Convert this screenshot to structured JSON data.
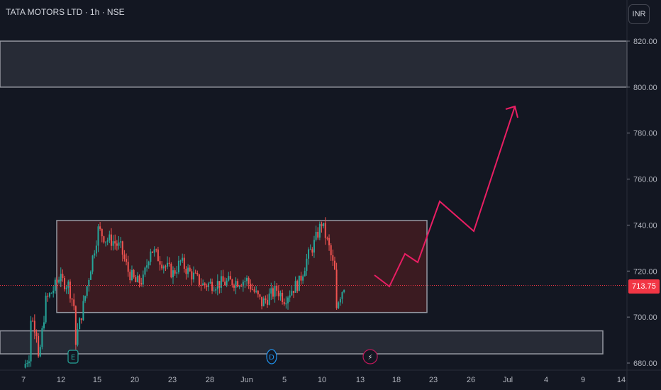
{
  "header": {
    "title": "TATA MOTORS LTD · 1h · NSE",
    "currency": "INR"
  },
  "last_price": "713.75",
  "colors": {
    "background": "#131722",
    "up": "#26a69a",
    "down": "#ef5350",
    "range_box_fill": "#4a1d22",
    "projection": "#e91e63",
    "price_line": "#f23645",
    "zone_stroke": "#9598a1"
  },
  "event_markers": [
    {
      "label": "E",
      "icon": "earnings-icon",
      "x": "13"
    },
    {
      "label": "D",
      "icon": "dividend-icon",
      "x": "Jun 4"
    },
    {
      "label": "⚡",
      "icon": "lightning-icon",
      "x": "Jun 13"
    }
  ],
  "chart_data": {
    "type": "candlestick",
    "title": "TATA MOTORS LTD · 1h · NSE",
    "xlabel": "",
    "ylabel": "",
    "ylim": [
      678,
      825
    ],
    "y_ticks": [
      "820.00",
      "800.00",
      "780.00",
      "760.00",
      "740.00",
      "720.00",
      "700.00",
      "680.00"
    ],
    "x_ticks": [
      "7",
      "12",
      "15",
      "20",
      "23",
      "28",
      "Jun",
      "5",
      "10",
      "13",
      "18",
      "23",
      "26",
      "Jul",
      "4",
      "9",
      "14"
    ],
    "price_path": [
      [
        "7",
        678
      ],
      [
        "8",
        685
      ],
      [
        "8",
        700
      ],
      [
        "9",
        692
      ],
      [
        "9",
        680
      ],
      [
        "10",
        707
      ],
      [
        "11",
        712
      ],
      [
        "12",
        718
      ],
      [
        "12",
        716
      ],
      [
        "13",
        714
      ],
      [
        "14",
        702
      ],
      [
        "14",
        690
      ],
      [
        "15",
        705
      ],
      [
        "16",
        722
      ],
      [
        "17",
        738
      ],
      [
        "18",
        734
      ],
      [
        "19",
        733
      ],
      [
        "20",
        730
      ],
      [
        "21",
        720
      ],
      [
        "22",
        715
      ],
      [
        "23",
        716
      ],
      [
        "24",
        730
      ],
      [
        "25",
        726
      ],
      [
        "26",
        722
      ],
      [
        "27",
        719
      ],
      [
        "28",
        724
      ],
      [
        "29",
        720
      ],
      [
        "30",
        717
      ],
      [
        "31",
        714
      ],
      [
        "Jun",
        716
      ],
      [
        "2",
        711
      ],
      [
        "3",
        706
      ],
      [
        "4",
        709
      ],
      [
        "5",
        712
      ],
      [
        "6",
        708
      ],
      [
        "7",
        712
      ],
      [
        "8",
        715
      ],
      [
        "9",
        725
      ],
      [
        "10",
        732
      ],
      [
        "11",
        741
      ],
      [
        "12",
        730
      ],
      [
        "13",
        716
      ],
      [
        "13",
        706
      ],
      [
        "14",
        713.75
      ]
    ],
    "zones": [
      {
        "name": "upper-resistance-zone",
        "x_start": "7",
        "x_end": "14",
        "y_low": 800,
        "y_high": 820
      },
      {
        "name": "consolidation-range",
        "x_start": "10",
        "x_end": "22",
        "y_low": 702,
        "y_high": 742
      },
      {
        "name": "lower-support-zone",
        "x_start": "7",
        "x_end": "11",
        "y_low": 684,
        "y_high": 694
      }
    ],
    "projection": [
      [
        "14",
        718
      ],
      [
        "17",
        714
      ],
      [
        "19",
        727
      ],
      [
        "20",
        723
      ],
      [
        "23",
        750
      ],
      [
        "26",
        737
      ],
      [
        "29",
        791
      ]
    ]
  }
}
